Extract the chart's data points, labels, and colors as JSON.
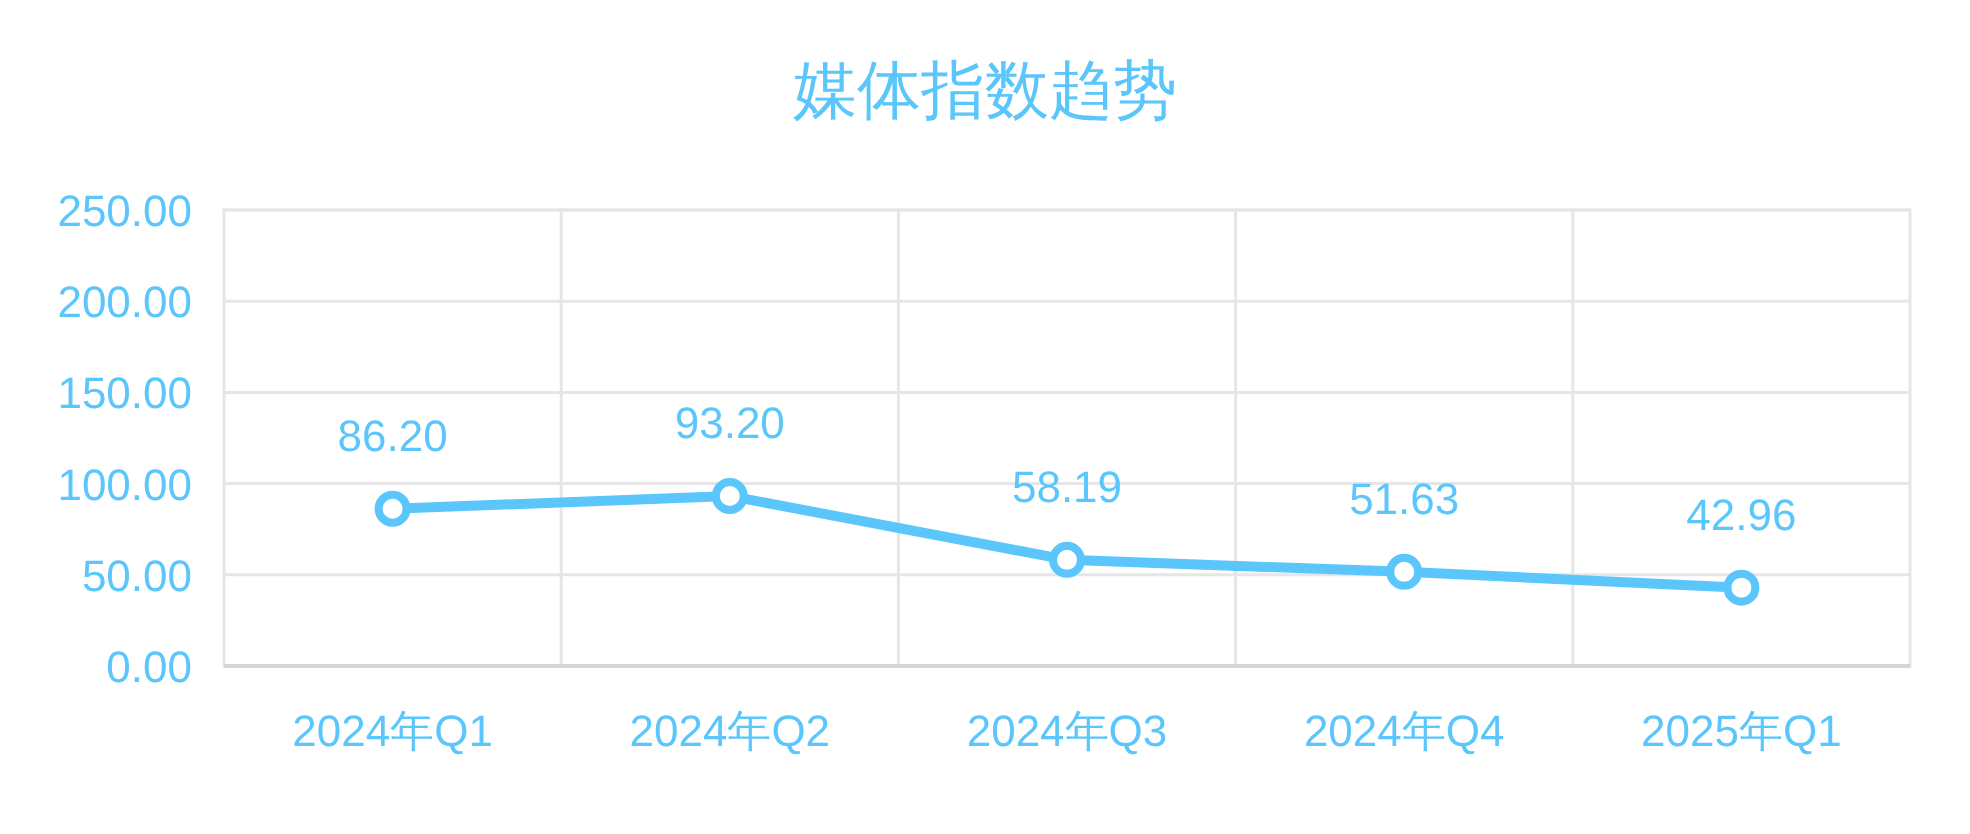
{
  "chart_data": {
    "type": "line",
    "title": "媒体指数趋势",
    "categories": [
      "2024年Q1",
      "2024年Q2",
      "2024年Q3",
      "2024年Q4",
      "2025年Q1"
    ],
    "series": [
      {
        "color": "#5bc6fb",
        "values": [
          86.2,
          93.2,
          58.19,
          51.63,
          42.96
        ],
        "value_labels": [
          "86.20",
          "93.20",
          "58.19",
          "51.63",
          "42.96"
        ]
      }
    ],
    "ylim": [
      0,
      250
    ],
    "yticks": [
      {
        "value": 0,
        "label": "0.00"
      },
      {
        "value": 50,
        "label": "50.00"
      },
      {
        "value": 100,
        "label": "100.00"
      },
      {
        "value": 150,
        "label": "150.00"
      },
      {
        "value": 200,
        "label": "200.00"
      },
      {
        "value": 250,
        "label": "250.00"
      }
    ],
    "grid": true,
    "marker": "circle",
    "line_style": "solid"
  }
}
